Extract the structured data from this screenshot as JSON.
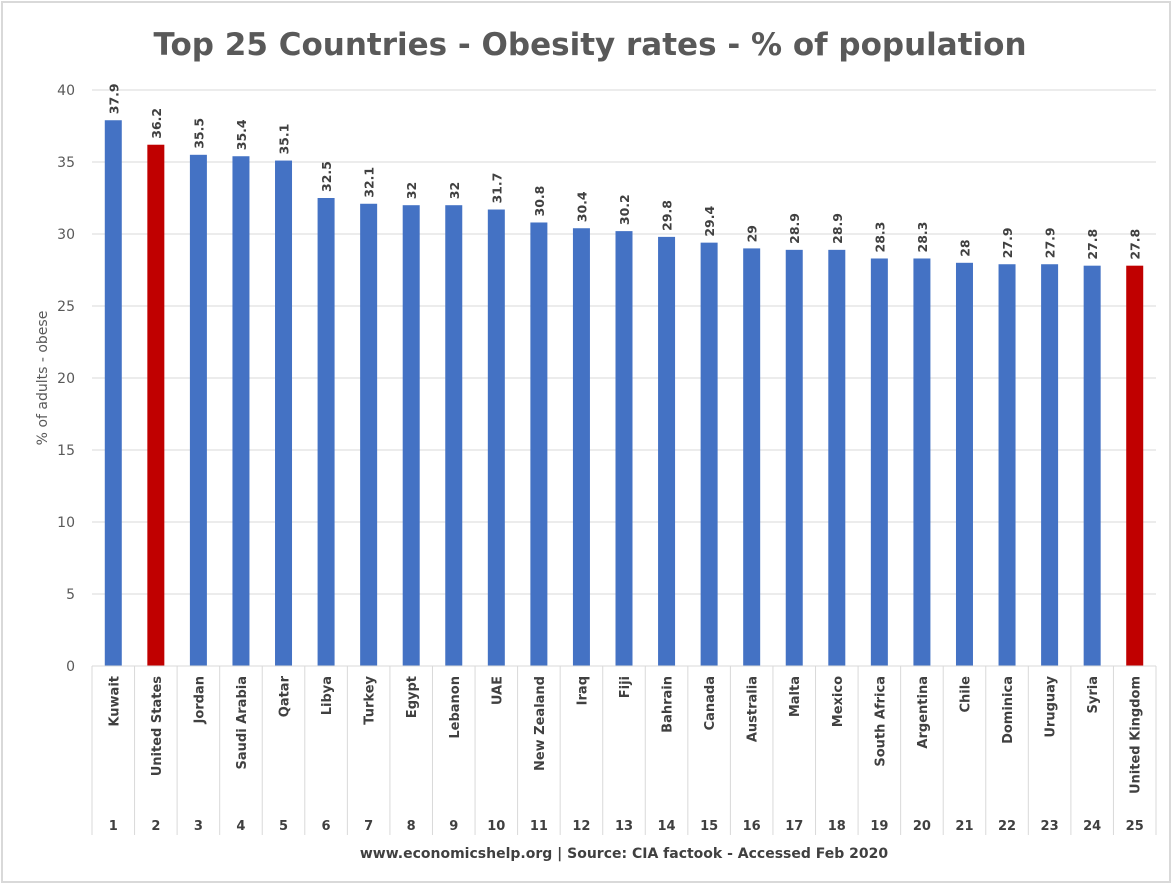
{
  "chart_data": {
    "type": "bar",
    "title": "Top 25 Countries - Obesity rates - % of population",
    "ylabel": "% of adults - obese",
    "xlabel": "www.economicshelp.org | Source: CIA factook - Accessed Feb 2020",
    "ylim": [
      0,
      40
    ],
    "yticks": [
      0,
      5,
      10,
      15,
      20,
      25,
      30,
      35,
      40
    ],
    "grid": true,
    "categories": [
      "Kuwait",
      "United States",
      "Jordan",
      "Saudi Arabia",
      "Qatar",
      "Libya",
      "Turkey",
      "Egypt",
      "Lebanon",
      "UAE",
      "New Zealand",
      "Iraq",
      "Fiji",
      "Bahrain",
      "Canada",
      "Australia",
      "Malta",
      "Mexico",
      "South Africa",
      "Argentina",
      "Chile",
      "Dominica",
      "Uruguay",
      "Syria",
      "United Kingdom"
    ],
    "ranks": [
      1,
      2,
      3,
      4,
      5,
      6,
      7,
      8,
      9,
      10,
      11,
      12,
      13,
      14,
      15,
      16,
      17,
      18,
      19,
      20,
      21,
      22,
      23,
      24,
      25
    ],
    "values": [
      37.9,
      36.2,
      35.5,
      35.4,
      35.1,
      32.5,
      32.1,
      32,
      32,
      31.7,
      30.8,
      30.4,
      30.2,
      29.8,
      29.4,
      29,
      28.9,
      28.9,
      28.3,
      28.3,
      28,
      27.9,
      27.9,
      27.8,
      27.8
    ],
    "colors": {
      "default": "#4472c4",
      "highlight": "#c00000"
    },
    "highlighted": [
      "United States",
      "United Kingdom"
    ]
  }
}
